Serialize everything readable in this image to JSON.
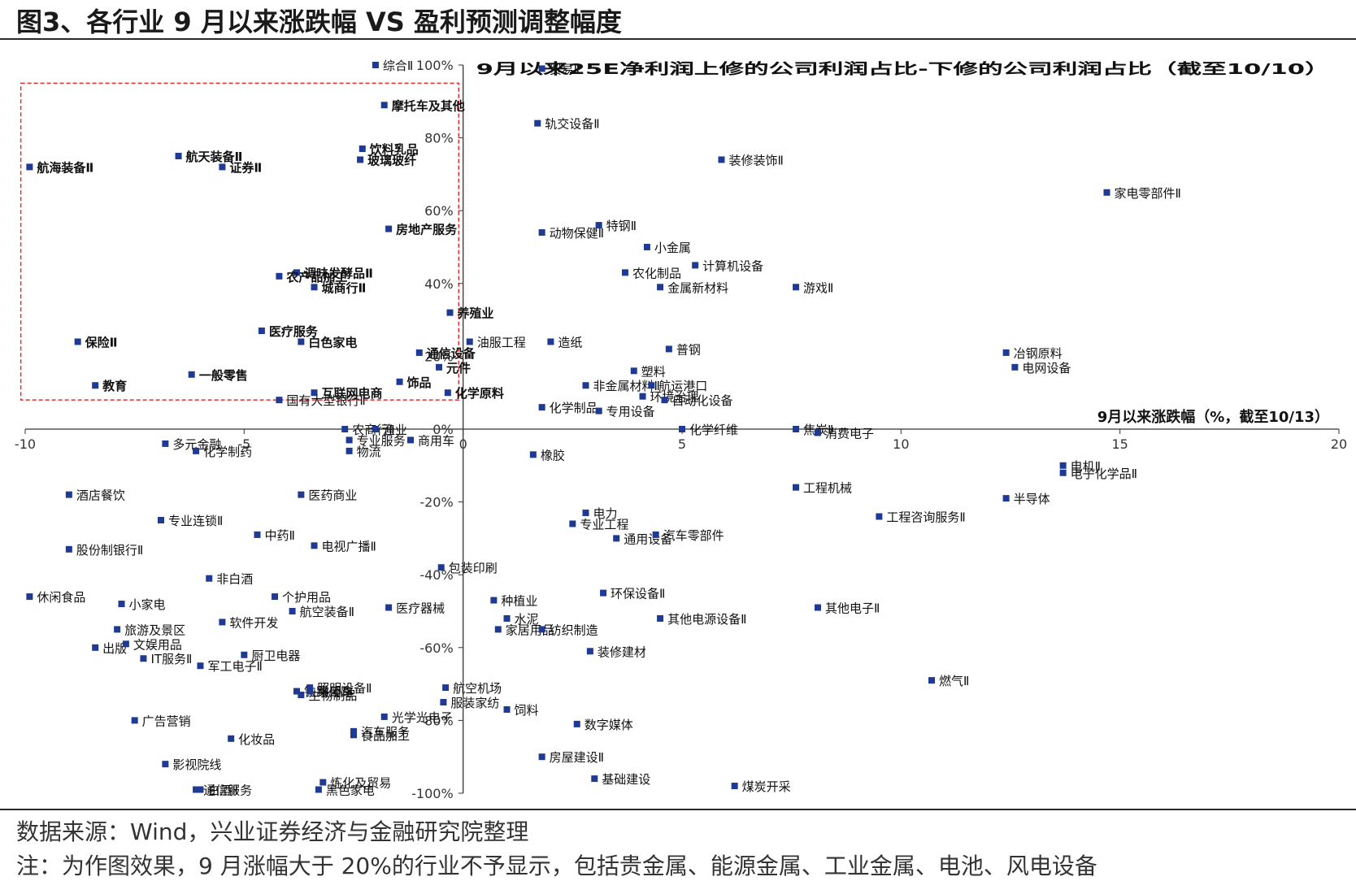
{
  "figure_title": "图3、各行业 9 月以来涨跌幅 VS 盈利预测调整幅度",
  "source": "数据来源：Wind，兴业证券经济与金融研究院整理",
  "note": "注：为作图效果，9 月涨幅大于 20%的行业不予显示，包括贵金属、能源金属、工业金属、电池、风电设备",
  "colors": {
    "marker": "#1f3a93",
    "highlight_box": "#e03030",
    "axis": "#333333"
  },
  "chart_data": {
    "type": "scatter",
    "xlabel": "9月以来涨跌幅（%，截至10/13）",
    "ylabel": "9月以来25E净利润上修的公司利润占比-下修的公司利润占比（截至10/10）",
    "xlim": [
      -10,
      20
    ],
    "ylim": [
      -100,
      100
    ],
    "x_ticks": [
      "-10",
      "-5",
      "0",
      "5",
      "10",
      "15",
      "20"
    ],
    "y_ticks": [
      "-100%",
      "-80%",
      "-60%",
      "-40%",
      "-20%",
      "0%",
      "20%",
      "40%",
      "60%",
      "80%",
      "100%"
    ],
    "grid": false,
    "highlight_region": {
      "x": [
        -10.1,
        -0.1
      ],
      "y": [
        8,
        95
      ]
    },
    "points": [
      {
        "name": "综合Ⅱ",
        "x": -2.0,
        "y": 100,
        "bold": false
      },
      {
        "name": "摩托车及其他",
        "x": -1.8,
        "y": 89,
        "bold": true
      },
      {
        "name": "饮料乳品",
        "x": -2.3,
        "y": 77,
        "bold": true
      },
      {
        "name": "玻璃玻纤",
        "x": -2.35,
        "y": 74,
        "bold": true
      },
      {
        "name": "航天装备Ⅱ",
        "x": -6.5,
        "y": 75,
        "bold": true
      },
      {
        "name": "证券Ⅱ",
        "x": -5.5,
        "y": 72,
        "bold": true
      },
      {
        "name": "航海装备Ⅱ",
        "x": -9.9,
        "y": 72,
        "bold": true
      },
      {
        "name": "房地产服务",
        "x": -1.7,
        "y": 55,
        "bold": true
      },
      {
        "name": "调味发酵品Ⅱ",
        "x": -3.8,
        "y": 43,
        "bold": true
      },
      {
        "name": "农产品加工",
        "x": -4.2,
        "y": 42,
        "bold": true
      },
      {
        "name": "城商行Ⅱ",
        "x": -3.4,
        "y": 39,
        "bold": true
      },
      {
        "name": "养殖业",
        "x": -0.3,
        "y": 32,
        "bold": true
      },
      {
        "name": "油服工程",
        "x": 0.15,
        "y": 24,
        "bold": false
      },
      {
        "name": "医疗服务",
        "x": -4.6,
        "y": 27,
        "bold": true
      },
      {
        "name": "白色家电",
        "x": -3.7,
        "y": 24,
        "bold": true
      },
      {
        "name": "保险Ⅱ",
        "x": -8.8,
        "y": 24,
        "bold": true
      },
      {
        "name": "通信设备",
        "x": -1.0,
        "y": 21,
        "bold": true
      },
      {
        "name": "元件",
        "x": -0.55,
        "y": 17,
        "bold": true
      },
      {
        "name": "饰品",
        "x": -1.45,
        "y": 13,
        "bold": true
      },
      {
        "name": "互联网电商",
        "x": -3.4,
        "y": 10,
        "bold": true
      },
      {
        "name": "一般零售",
        "x": -6.2,
        "y": 15,
        "bold": true
      },
      {
        "name": "化学原料",
        "x": -0.35,
        "y": 10,
        "bold": true
      },
      {
        "name": "教育",
        "x": -8.4,
        "y": 12,
        "bold": true
      },
      {
        "name": "国有大型银行Ⅱ",
        "x": -4.2,
        "y": 8,
        "bold": false
      },
      {
        "name": "农商行Ⅱ",
        "x": -2.7,
        "y": 0,
        "bold": false
      },
      {
        "name": "渔业",
        "x": -2.0,
        "y": 0,
        "bold": false
      },
      {
        "name": "多元金融",
        "x": -6.8,
        "y": -4,
        "bold": false
      },
      {
        "name": "化学制药",
        "x": -6.1,
        "y": -6,
        "bold": false
      },
      {
        "name": "专业服务",
        "x": -2.6,
        "y": -3,
        "bold": false
      },
      {
        "name": "物流",
        "x": -2.6,
        "y": -6,
        "bold": false
      },
      {
        "name": "商用车",
        "x": -1.2,
        "y": -3,
        "bold": false
      },
      {
        "name": "贸易Ⅱ",
        "x": 1.8,
        "y": 99,
        "bold": false
      },
      {
        "name": "轨交设备Ⅱ",
        "x": 1.7,
        "y": 84,
        "bold": false
      },
      {
        "name": "装修装饰Ⅱ",
        "x": 5.9,
        "y": 74,
        "bold": false
      },
      {
        "name": "家电零部件Ⅱ",
        "x": 14.7,
        "y": 65,
        "bold": false
      },
      {
        "name": "动物保健Ⅱ",
        "x": 1.8,
        "y": 54,
        "bold": false
      },
      {
        "name": "特钢Ⅱ",
        "x": 3.1,
        "y": 56,
        "bold": false
      },
      {
        "name": "小金属",
        "x": 4.2,
        "y": 50,
        "bold": false
      },
      {
        "name": "计算机设备",
        "x": 5.3,
        "y": 45,
        "bold": false
      },
      {
        "name": "农化制品",
        "x": 3.7,
        "y": 43,
        "bold": false
      },
      {
        "name": "金属新材料",
        "x": 4.5,
        "y": 39,
        "bold": false
      },
      {
        "name": "游戏Ⅱ",
        "x": 7.6,
        "y": 39,
        "bold": false
      },
      {
        "name": "造纸",
        "x": 2.0,
        "y": 24,
        "bold": false
      },
      {
        "name": "普钢",
        "x": 4.7,
        "y": 22,
        "bold": false
      },
      {
        "name": "塑料",
        "x": 3.9,
        "y": 16,
        "bold": false
      },
      {
        "name": "非金属材料Ⅱ",
        "x": 2.8,
        "y": 12,
        "bold": false
      },
      {
        "name": "航运港口",
        "x": 4.3,
        "y": 12,
        "bold": false
      },
      {
        "name": "环境治理",
        "x": 4.1,
        "y": 9,
        "bold": false
      },
      {
        "name": "自动化设备",
        "x": 4.6,
        "y": 8,
        "bold": false
      },
      {
        "name": "化学制品",
        "x": 1.8,
        "y": 6,
        "bold": false
      },
      {
        "name": "专用设备",
        "x": 3.1,
        "y": 5,
        "bold": false
      },
      {
        "name": "化学纤维",
        "x": 5.0,
        "y": 0,
        "bold": false
      },
      {
        "name": "焦炭Ⅱ",
        "x": 7.6,
        "y": 0,
        "bold": false
      },
      {
        "name": "消费电子",
        "x": 8.1,
        "y": -1,
        "bold": false
      },
      {
        "name": "冶钢原料",
        "x": 12.4,
        "y": 21,
        "bold": false
      },
      {
        "name": "电网设备",
        "x": 12.6,
        "y": 17,
        "bold": false
      },
      {
        "name": "橡胶",
        "x": 1.6,
        "y": -7,
        "bold": false
      },
      {
        "name": "电机Ⅱ",
        "x": 13.7,
        "y": -10,
        "bold": false
      },
      {
        "name": "电子化学品Ⅱ",
        "x": 13.7,
        "y": -12,
        "bold": false
      },
      {
        "name": "工程机械",
        "x": 7.6,
        "y": -16,
        "bold": false
      },
      {
        "name": "半导体",
        "x": 12.4,
        "y": -19,
        "bold": false
      },
      {
        "name": "工程咨询服务Ⅱ",
        "x": 9.5,
        "y": -24,
        "bold": false
      },
      {
        "name": "电力",
        "x": 2.8,
        "y": -23,
        "bold": false
      },
      {
        "name": "专业工程",
        "x": 2.5,
        "y": -26,
        "bold": false
      },
      {
        "name": "通用设备",
        "x": 3.5,
        "y": -30,
        "bold": false
      },
      {
        "name": "汽车零部件",
        "x": 4.4,
        "y": -29,
        "bold": false
      },
      {
        "name": "包装印刷",
        "x": -0.5,
        "y": -38,
        "bold": false
      },
      {
        "name": "种植业",
        "x": 0.7,
        "y": -47,
        "bold": false
      },
      {
        "name": "水泥",
        "x": 1.0,
        "y": -52,
        "bold": false
      },
      {
        "name": "环保设备Ⅱ",
        "x": 3.2,
        "y": -45,
        "bold": false
      },
      {
        "name": "其他电源设备Ⅱ",
        "x": 4.5,
        "y": -52,
        "bold": false
      },
      {
        "name": "其他电子Ⅱ",
        "x": 8.1,
        "y": -49,
        "bold": false
      },
      {
        "name": "家居用品",
        "x": 0.8,
        "y": -55,
        "bold": false
      },
      {
        "name": "纺织制造",
        "x": 1.8,
        "y": -55,
        "bold": false
      },
      {
        "name": "装修建材",
        "x": 2.9,
        "y": -61,
        "bold": false
      },
      {
        "name": "燃气Ⅱ",
        "x": 10.7,
        "y": -69,
        "bold": false
      },
      {
        "name": "航空机场",
        "x": -0.4,
        "y": -71,
        "bold": false
      },
      {
        "name": "服装家纺",
        "x": -0.45,
        "y": -75,
        "bold": false
      },
      {
        "name": "饲料",
        "x": 1.0,
        "y": -77,
        "bold": false
      },
      {
        "name": "数字媒体",
        "x": 2.6,
        "y": -81,
        "bold": false
      },
      {
        "name": "房屋建设Ⅱ",
        "x": 1.8,
        "y": -90,
        "bold": false
      },
      {
        "name": "基础建设",
        "x": 3.0,
        "y": -96,
        "bold": false
      },
      {
        "name": "煤炭开采",
        "x": 6.2,
        "y": -98,
        "bold": false
      },
      {
        "name": "酒店餐饮",
        "x": -9.0,
        "y": -18,
        "bold": false
      },
      {
        "name": "专业连锁Ⅱ",
        "x": -6.9,
        "y": -25,
        "bold": false
      },
      {
        "name": "股份制银行Ⅱ",
        "x": -9.0,
        "y": -33,
        "bold": false
      },
      {
        "name": "医药商业",
        "x": -3.7,
        "y": -18,
        "bold": false
      },
      {
        "name": "中药Ⅱ",
        "x": -4.7,
        "y": -29,
        "bold": false
      },
      {
        "name": "电视广播Ⅱ",
        "x": -3.4,
        "y": -32,
        "bold": false
      },
      {
        "name": "非白酒",
        "x": -5.8,
        "y": -41,
        "bold": false
      },
      {
        "name": "休闲食品",
        "x": -9.9,
        "y": -46,
        "bold": false
      },
      {
        "name": "小家电",
        "x": -7.8,
        "y": -48,
        "bold": false
      },
      {
        "name": "个护用品",
        "x": -4.3,
        "y": -46,
        "bold": false
      },
      {
        "name": "医疗器械",
        "x": -1.7,
        "y": -49,
        "bold": false
      },
      {
        "name": "航空装备Ⅱ",
        "x": -3.9,
        "y": -50,
        "bold": false
      },
      {
        "name": "软件开发",
        "x": -5.5,
        "y": -53,
        "bold": false
      },
      {
        "name": "旅游及景区",
        "x": -7.9,
        "y": -55,
        "bold": false
      },
      {
        "name": "出版",
        "x": -8.4,
        "y": -60,
        "bold": false
      },
      {
        "name": "文娱用品",
        "x": -7.7,
        "y": -59,
        "bold": false
      },
      {
        "name": "IT服务Ⅱ",
        "x": -7.3,
        "y": -63,
        "bold": false
      },
      {
        "name": "厨卫电器",
        "x": -5.0,
        "y": -62,
        "bold": false
      },
      {
        "name": "军工电子Ⅱ",
        "x": -6.0,
        "y": -65,
        "bold": false
      },
      {
        "name": "铁路公路",
        "x": -3.8,
        "y": -72,
        "bold": false
      },
      {
        "name": "照明设备Ⅱ",
        "x": -3.5,
        "y": -71,
        "bold": false
      },
      {
        "name": "生物制品",
        "x": -3.7,
        "y": -73,
        "bold": false
      },
      {
        "name": "乘用车",
        "x": -3.5,
        "y": -72,
        "bold": false
      },
      {
        "name": "广告营销",
        "x": -7.5,
        "y": -80,
        "bold": false
      },
      {
        "name": "光学光电子",
        "x": -1.8,
        "y": -79,
        "bold": false
      },
      {
        "name": "汽车服务",
        "x": -2.5,
        "y": -83,
        "bold": false
      },
      {
        "name": "化妆品",
        "x": -5.3,
        "y": -85,
        "bold": false
      },
      {
        "name": "食品加工",
        "x": -2.5,
        "y": -84,
        "bold": false
      },
      {
        "name": "影视院线",
        "x": -6.8,
        "y": -92,
        "bold": false
      },
      {
        "name": "炼化及贸易",
        "x": -3.2,
        "y": -97,
        "bold": false
      },
      {
        "name": "通信服务",
        "x": -6.1,
        "y": -99,
        "bold": false
      },
      {
        "name": "白酒Ⅱ",
        "x": -6.0,
        "y": -99,
        "bold": false
      },
      {
        "name": "黑色家电",
        "x": -3.3,
        "y": -99,
        "bold": false
      }
    ]
  }
}
